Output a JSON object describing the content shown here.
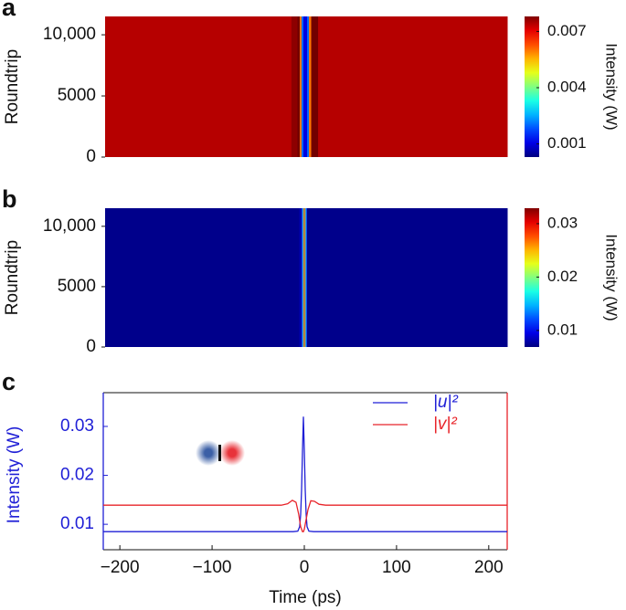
{
  "chart_data": [
    {
      "type": "heatmap",
      "panel_label": "a",
      "y_label": "Roundtrip",
      "colorbar_label": "Intensity (W)",
      "colormap": "jet",
      "x": [
        -218,
        -20,
        -10,
        -7,
        -5,
        -3,
        -1,
        1,
        3,
        5,
        8,
        20,
        220
      ],
      "values": [
        0.0074,
        0.0074,
        0.0077,
        0.0079,
        0.006,
        0.002,
        0.001,
        0.001,
        0.002,
        0.006,
        0.0079,
        0.0074,
        0.0074
      ],
      "xlim": [
        -218,
        220
      ],
      "ylim": [
        0,
        11500
      ],
      "yticks": [
        0,
        5000,
        {
          "value": 10000,
          "label": "10,000"
        }
      ],
      "clim": [
        0.0003,
        0.0078
      ],
      "cticks": [
        0.001,
        0.004,
        0.007
      ]
    },
    {
      "type": "heatmap",
      "panel_label": "b",
      "y_label": "Roundtrip",
      "colorbar_label": "Intensity (W)",
      "colormap": "jet",
      "x": [
        -218,
        -8,
        -5,
        -3,
        -2,
        -1,
        0,
        1,
        3,
        220
      ],
      "values": [
        0.0072,
        0.0072,
        0.008,
        0.012,
        0.02,
        0.03,
        0.02,
        0.012,
        0.0072,
        0.0072
      ],
      "xlim": [
        -218,
        220
      ],
      "ylim": [
        0,
        11500
      ],
      "yticks": [
        0,
        5000,
        {
          "value": 10000,
          "label": "10,000"
        }
      ],
      "clim": [
        0.0069,
        0.0329
      ],
      "cticks": [
        0.01,
        0.02,
        0.03
      ]
    },
    {
      "type": "line",
      "panel_label": "c",
      "x_label": "Time (ps)",
      "y_label": "Intensity (W)",
      "legend": "upper right",
      "xlim": [
        -218,
        220
      ],
      "ylim": [
        0.0048,
        0.0369
      ],
      "xticks": [
        {
          "value": -200,
          "label": "−200"
        },
        {
          "value": -100,
          "label": "−100"
        },
        0,
        100,
        200
      ],
      "yticks": [
        0.01,
        0.02,
        0.03
      ],
      "series": [
        {
          "name": "|u|²",
          "color": "#1f1fd6",
          "x": [
            -218,
            -12,
            -7,
            -5,
            -4,
            -3,
            -2,
            -1,
            0,
            1,
            2,
            3,
            5,
            10,
            220
          ],
          "values": [
            0.0085,
            0.0085,
            0.0086,
            0.0095,
            0.012,
            0.017,
            0.025,
            0.032,
            0.025,
            0.017,
            0.012,
            0.0095,
            0.0086,
            0.0085,
            0.0085
          ]
        },
        {
          "name": "|v|²",
          "color": "#e8242a",
          "x": [
            -218,
            -25,
            -18,
            -13,
            -9,
            -6,
            -4,
            -2,
            -1,
            0,
            2,
            4,
            7,
            11,
            16,
            23,
            220
          ],
          "values": [
            0.0139,
            0.0139,
            0.0142,
            0.0149,
            0.0145,
            0.012,
            0.0095,
            0.0085,
            0.0085,
            0.009,
            0.011,
            0.013,
            0.0148,
            0.0147,
            0.0141,
            0.0139,
            0.0139
          ]
        }
      ]
    }
  ]
}
